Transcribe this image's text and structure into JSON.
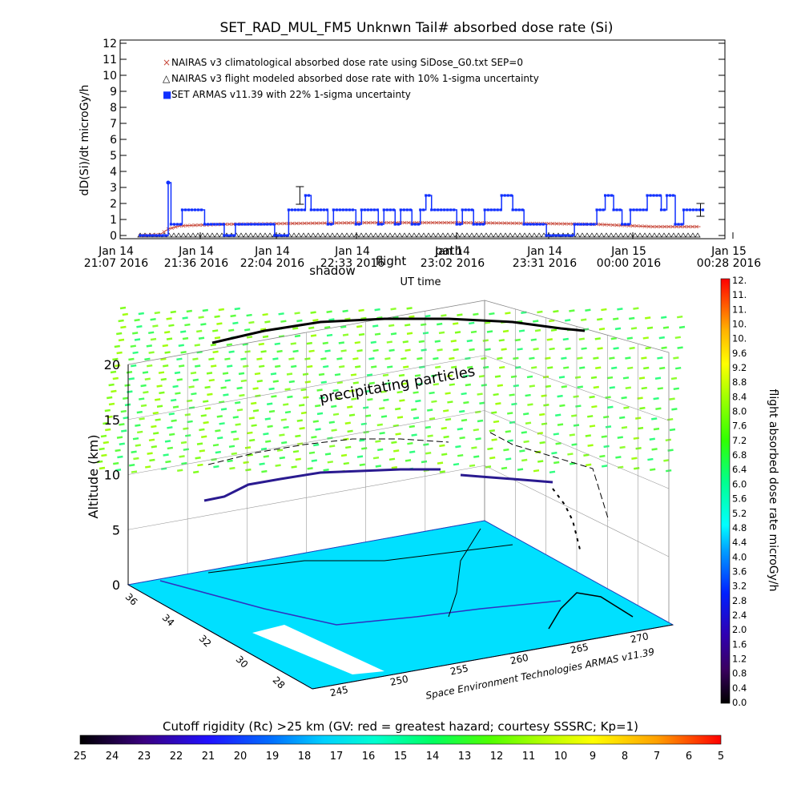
{
  "chart_data": [
    {
      "type": "line",
      "title": "SET_RAD_MUL_FM5 Unknwn Tail#  absorbed dose rate (Si)",
      "ylabel": "dD(Si)/dt microGy/h",
      "xlabel": "UT time",
      "ylim": [
        0,
        12
      ],
      "yticks": [
        "0",
        "1",
        "2",
        "3",
        "4",
        "5",
        "6",
        "7",
        "8",
        "9",
        "10",
        "11",
        "12"
      ],
      "xticks": [
        {
          "date": "Jan 14",
          "time": "21:07 2016"
        },
        {
          "date": "Jan 14",
          "time": "21:36 2016"
        },
        {
          "date": "Jan 14",
          "time": "22:04 2016"
        },
        {
          "date": "Jan 14",
          "time": "22:33 2016"
        },
        {
          "date": "Jan 14",
          "time": "23:02 2016"
        },
        {
          "date": "Jan 14",
          "time": "23:31 2016"
        },
        {
          "date": "Jan 15",
          "time": "00:00 2016"
        },
        {
          "date": "Jan 15",
          "time": "00:28 2016"
        }
      ],
      "overlay_labels": [
        "shadow",
        "flight",
        "path"
      ],
      "legend": [
        {
          "label": "NAIRAS v3 climatological absorbed dose rate using SiDose_G0.txt SEP=0",
          "symbol": "×",
          "color": "#c84a3c"
        },
        {
          "label": "NAIRAS v3 flight modeled absorbed dose rate with 10% 1-sigma uncertainty",
          "symbol": "△",
          "color": "#000000"
        },
        {
          "label": "SET ARMAS v11.39 with 22% 1-sigma uncertainty",
          "symbol": "■",
          "color": "#1030ff"
        }
      ],
      "series": [
        {
          "name": "SET ARMAS v11.39 with 22% 1-sigma uncertainty",
          "color": "#1030ff",
          "steps": [
            [
              "21:07",
              0
            ],
            [
              "21:15",
              0
            ],
            [
              "21:17",
              3.3
            ],
            [
              "21:18",
              0.7
            ],
            [
              "21:22",
              1.6
            ],
            [
              "21:30",
              0.7
            ],
            [
              "21:37",
              0
            ],
            [
              "21:41",
              0.7
            ],
            [
              "21:55",
              0
            ],
            [
              "22:00",
              1.6
            ],
            [
              "22:06",
              2.5
            ],
            [
              "22:08",
              1.6
            ],
            [
              "22:14",
              0.7
            ],
            [
              "22:16",
              1.6
            ],
            [
              "22:24",
              0.7
            ],
            [
              "22:26",
              1.6
            ],
            [
              "22:32",
              0.7
            ],
            [
              "22:34",
              1.6
            ],
            [
              "22:38",
              0.7
            ],
            [
              "22:40",
              1.6
            ],
            [
              "22:44",
              0.7
            ],
            [
              "22:47",
              1.6
            ],
            [
              "22:49",
              2.5
            ],
            [
              "22:51",
              1.6
            ],
            [
              "23:00",
              0.7
            ],
            [
              "23:02",
              1.6
            ],
            [
              "23:06",
              0.7
            ],
            [
              "23:10",
              1.6
            ],
            [
              "23:16",
              2.5
            ],
            [
              "23:20",
              1.6
            ],
            [
              "23:24",
              0.7
            ],
            [
              "23:32",
              0
            ],
            [
              "23:42",
              0.7
            ],
            [
              "23:50",
              1.6
            ],
            [
              "23:53",
              2.5
            ],
            [
              "23:56",
              1.6
            ],
            [
              "23:59",
              0.7
            ],
            [
              "00:02",
              1.6
            ],
            [
              "00:08",
              2.5
            ],
            [
              "00:13",
              1.6
            ],
            [
              "00:15",
              2.5
            ],
            [
              "00:18",
              0.7
            ],
            [
              "00:21",
              1.6
            ],
            [
              "00:28",
              1.6
            ]
          ]
        },
        {
          "name": "NAIRAS v3 climatological absorbed dose rate using SiDose_G0.txt SEP=0",
          "color": "#c84a3c",
          "points": [
            [
              "21:07",
              0
            ],
            [
              "21:14",
              0.05
            ],
            [
              "21:17",
              0.4
            ],
            [
              "21:21",
              0.6
            ],
            [
              "21:28",
              0.65
            ],
            [
              "21:36",
              0.7
            ],
            [
              "22:00",
              0.75
            ],
            [
              "22:30",
              0.8
            ],
            [
              "23:00",
              0.8
            ],
            [
              "23:30",
              0.75
            ],
            [
              "23:50",
              0.7
            ],
            [
              "00:10",
              0.55
            ],
            [
              "00:27",
              0.55
            ]
          ]
        },
        {
          "name": "NAIRAS v3 flight modeled absorbed dose rate with 10% 1-sigma uncertainty",
          "color": "#000000",
          "points": [
            [
              "21:07",
              0
            ],
            [
              "00:27",
              0
            ]
          ]
        }
      ],
      "error_bars": [
        {
          "t": "22:04",
          "y": 2.5,
          "err": 0.55
        },
        {
          "t": "00:27",
          "y": 1.6,
          "err": 0.4
        }
      ]
    },
    {
      "type": "3d-surface",
      "zlabel": "Altitude (km)",
      "zticks": [
        "0",
        "5",
        "10",
        "15",
        "20"
      ],
      "lat_ticks": [
        "36",
        "34",
        "32",
        "30",
        "28"
      ],
      "lon_ticks": [
        "245",
        "250",
        "255",
        "260",
        "265",
        "270"
      ],
      "surface_label": "precipitating particles",
      "credit": "Space Environment Technologies ARMAS v11.39",
      "colorbar": {
        "title": "flight absorbed dose rate microGy/h",
        "ticks": [
          "0.0",
          "0.4",
          "0.8",
          "1.2",
          "1.6",
          "2.0",
          "2.4",
          "2.8",
          "3.2",
          "3.6",
          "4.0",
          "4.4",
          "4.8",
          "5.2",
          "5.6",
          "6.0",
          "6.4",
          "6.8",
          "7.2",
          "7.6",
          "8.0",
          "8.4",
          "8.8",
          "9.2",
          "9.6",
          "10.",
          "10.",
          "11.",
          "11.",
          "12."
        ]
      }
    },
    {
      "type": "colorbar",
      "title": "Cutoff rigidity (Rc) >25 km (GV: red = greatest hazard; courtesy SSSRC; Kp=1)",
      "ticks": [
        "25",
        "24",
        "23",
        "22",
        "21",
        "20",
        "19",
        "18",
        "17",
        "16",
        "15",
        "14",
        "13",
        "12",
        "11",
        "10",
        "9",
        "8",
        "7",
        "6",
        "5"
      ]
    }
  ]
}
